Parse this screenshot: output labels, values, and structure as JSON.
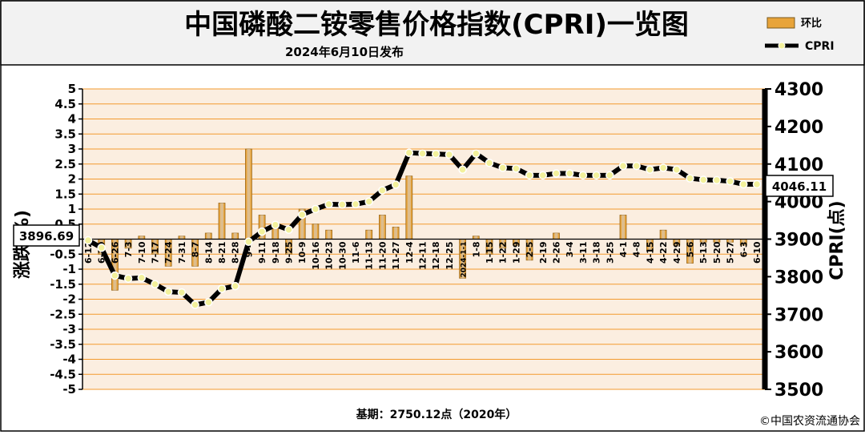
{
  "header": {
    "title": "中国磷酸二铵零售价格指数(CPRI)一览图",
    "date": "2024年6月10日发布"
  },
  "legend": {
    "bar_label": "环比",
    "line_label": "CPRI"
  },
  "footer": {
    "base": "基期：2750.12点（2020年）",
    "copyright": "©中国农资流通协会"
  },
  "callouts": {
    "start_value": "3896.69",
    "end_value": "4046.11"
  },
  "colors": {
    "plot_bg": "#fbeee0",
    "grid": "#f39a2e",
    "bar": "#e8a43a",
    "bar_light": "#d9c7b0",
    "line": "#000000",
    "marker_fill": "#f3f19c"
  },
  "chart_data": {
    "type": "bar+line",
    "x_labels": [
      "6-12",
      "6-19",
      "6-26",
      "7-3",
      "7-10",
      "7-17",
      "7-24",
      "7-31",
      "8-7",
      "8-14",
      "8-21",
      "8-28",
      "9-4",
      "9-11",
      "9-18",
      "9-25",
      "10-9",
      "10-16",
      "10-23",
      "10-30",
      "11-6",
      "11-13",
      "11-20",
      "11-27",
      "12-4",
      "12-11",
      "12-18",
      "12-25",
      "2024-1-1",
      "1-8",
      "1-15",
      "1-22",
      "1-29",
      "2-5",
      "2-19",
      "2-26",
      "3-4",
      "3-11",
      "3-18",
      "3-25",
      "4-1",
      "4-8",
      "4-15",
      "4-22",
      "4-29",
      "5-6",
      "5-13",
      "5-20",
      "5-27",
      "6-3",
      "6-10"
    ],
    "series": [
      {
        "name": "环比",
        "axis": "left",
        "values": [
          0.0,
          -0.5,
          -1.7,
          -0.3,
          0.1,
          -0.5,
          -0.9,
          0.1,
          -0.9,
          0.2,
          1.2,
          0.2,
          3.0,
          0.8,
          0.4,
          -0.5,
          1.0,
          0.5,
          0.3,
          0.0,
          0.0,
          0.3,
          0.8,
          0.4,
          2.1,
          0.0,
          0.0,
          0.0,
          -1.3,
          0.1,
          -0.5,
          -0.3,
          -0.2,
          -0.7,
          0.0,
          0.2,
          0.0,
          0.0,
          0.0,
          0.0,
          0.8,
          0.0,
          -0.4,
          0.3,
          -0.2,
          -0.8,
          -0.1,
          -0.1,
          -0.1,
          -0.2,
          0.0
        ]
      },
      {
        "name": "CPRI",
        "axis": "right",
        "values": [
          3896.69,
          3877,
          3803,
          3795,
          3797,
          3780,
          3760,
          3758,
          3725,
          3732,
          3768,
          3775,
          3893,
          3920,
          3938,
          3925,
          3965,
          3980,
          3993,
          3992,
          3993,
          4000,
          4030,
          4045,
          4130,
          4128,
          4127,
          4125,
          4085,
          4128,
          4103,
          4090,
          4088,
          4070,
          4070,
          4075,
          4075,
          4070,
          4070,
          4070,
          4095,
          4095,
          4085,
          4090,
          4085,
          4062,
          4058,
          4057,
          4054,
          4046,
          4046.11
        ]
      }
    ],
    "y_left": {
      "label": "涨跌(%)",
      "range": [
        -5,
        5
      ],
      "step": 0.5
    },
    "y_right": {
      "label": "CPRI(点)",
      "range": [
        3500,
        4300
      ],
      "step": 100
    },
    "grid": true,
    "legend_position": "top-right"
  }
}
